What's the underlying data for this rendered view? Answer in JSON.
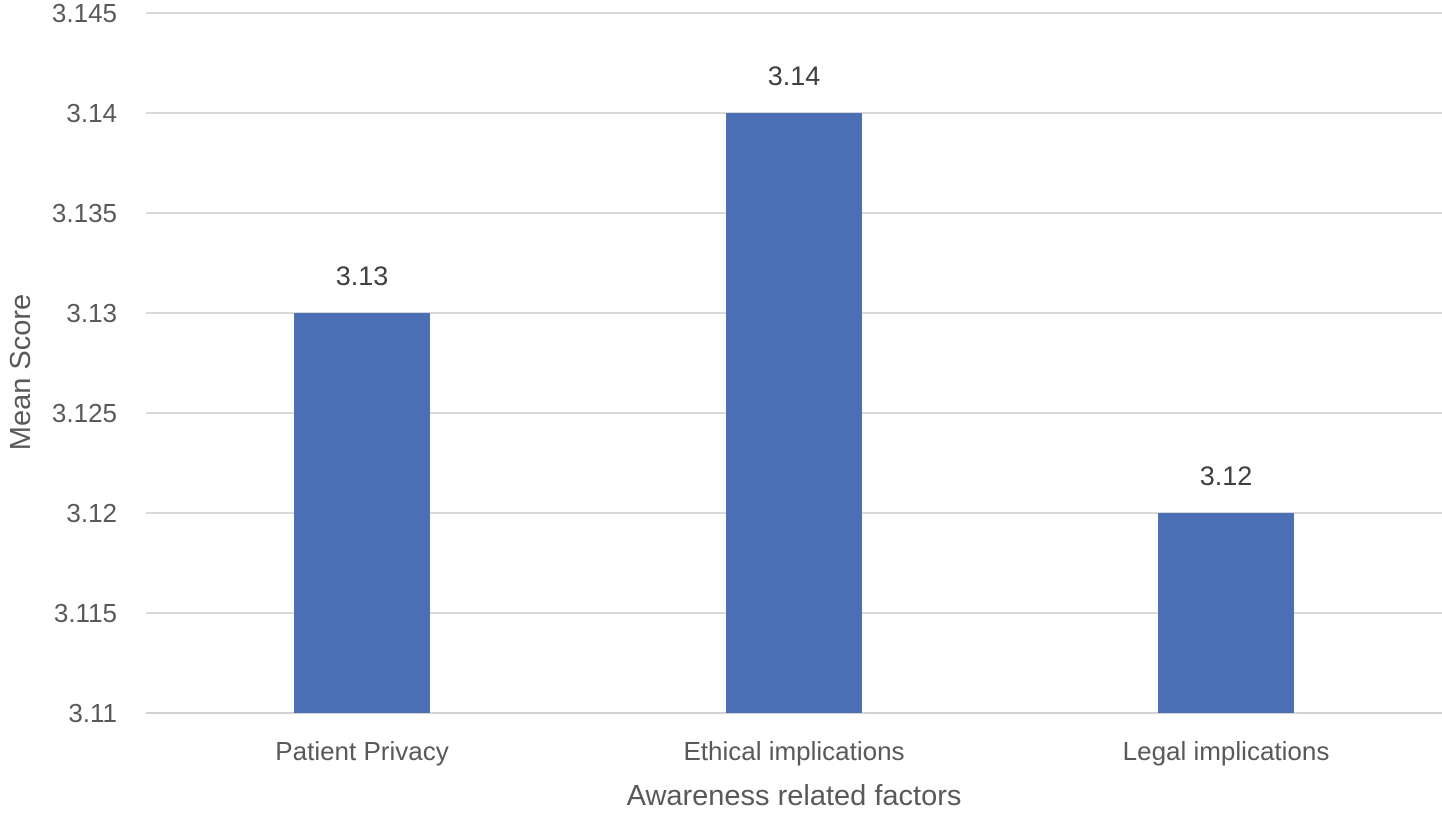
{
  "chart_data": {
    "type": "bar",
    "title": "",
    "categories": [
      "Patient Privacy",
      "Ethical implications",
      "Legal implications"
    ],
    "values": [
      3.13,
      3.14,
      3.12
    ],
    "data_labels": [
      "3.13",
      "3.14",
      "3.12"
    ],
    "xlabel": "Awareness related factors",
    "ylabel": "Mean Score",
    "ylim": [
      3.11,
      3.145
    ],
    "ytick_step": 0.005,
    "yticks": [
      "3.11",
      "3.115",
      "3.12",
      "3.125",
      "3.13",
      "3.135",
      "3.14",
      "3.145"
    ],
    "grid": true,
    "legend": "none",
    "colors": {
      "bar": "#4a6fb5",
      "gridline": "#d9d9d9",
      "axis_text": "#595959",
      "data_label": "#404040"
    }
  }
}
